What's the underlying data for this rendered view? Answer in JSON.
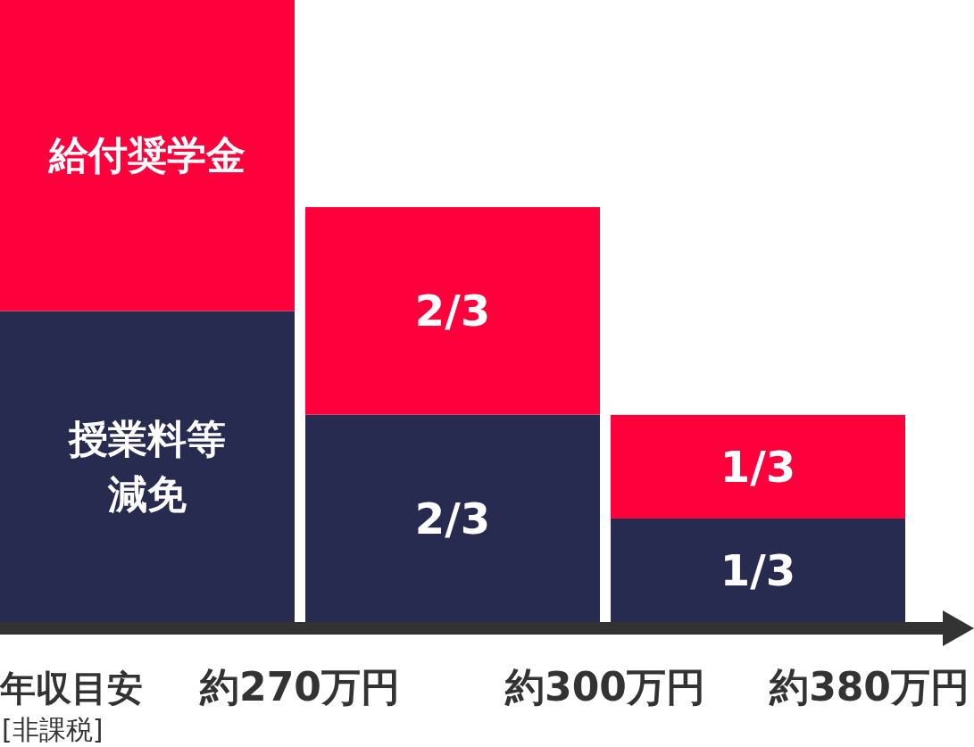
{
  "chart_data": {
    "type": "bar",
    "stacked": true,
    "xlabel": "年収目安",
    "categories": [
      null,
      null,
      null
    ],
    "series": [
      {
        "name": "授業料等減免",
        "color": "#282b50",
        "values": [
          1,
          0.667,
          0.333
        ],
        "value_labels": [
          null,
          "2/3",
          "1/3"
        ]
      },
      {
        "name": "給付奨学金",
        "color": "#ff003c",
        "values": [
          1,
          0.667,
          0.333
        ],
        "value_labels": [
          null,
          "2/3",
          "1/3"
        ]
      }
    ],
    "annotations": [
      "[非課税]",
      "約270万円",
      "約300万円",
      "約380万円"
    ]
  }
}
